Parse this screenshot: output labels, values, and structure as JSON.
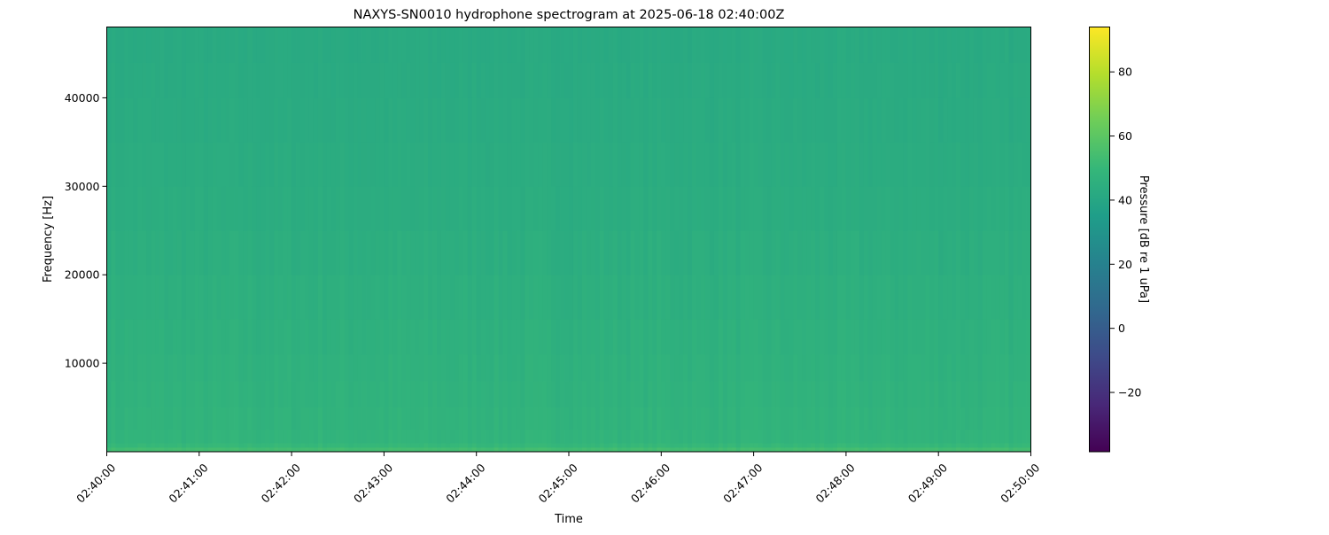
{
  "chart_data": {
    "type": "heatmap",
    "title": "NAXYS-SN0010 hydrophone spectrogram at 2025-06-18 02:40:00Z",
    "xlabel": "Time",
    "ylabel": "Frequency [Hz]",
    "colorbar_label": "Pressure [dB re 1 uPa]",
    "colormap": "viridis",
    "xlim": [
      "02:40:00",
      "02:50:00"
    ],
    "x_tick_labels": [
      "02:40:00",
      "02:41:00",
      "02:42:00",
      "02:43:00",
      "02:44:00",
      "02:45:00",
      "02:46:00",
      "02:47:00",
      "02:48:00",
      "02:49:00",
      "02:50:00"
    ],
    "ylim": [
      0,
      48000
    ],
    "y_ticks": [
      10000,
      20000,
      30000,
      40000
    ],
    "y_tick_labels": [
      "10000",
      "20000",
      "30000",
      "40000"
    ],
    "clim": [
      -38.5,
      94
    ],
    "colorbar_ticks": [
      -20,
      0,
      20,
      40,
      60,
      80
    ],
    "colorbar_tick_labels": [
      "−20",
      "0",
      "20",
      "40",
      "60",
      "80"
    ],
    "frequency_profile": {
      "frequency_hz": [
        0,
        1000,
        5000,
        15000,
        25000,
        35000,
        48000
      ],
      "level_db": [
        55,
        48,
        47,
        45.5,
        44,
        43,
        42
      ]
    },
    "grid": false
  }
}
